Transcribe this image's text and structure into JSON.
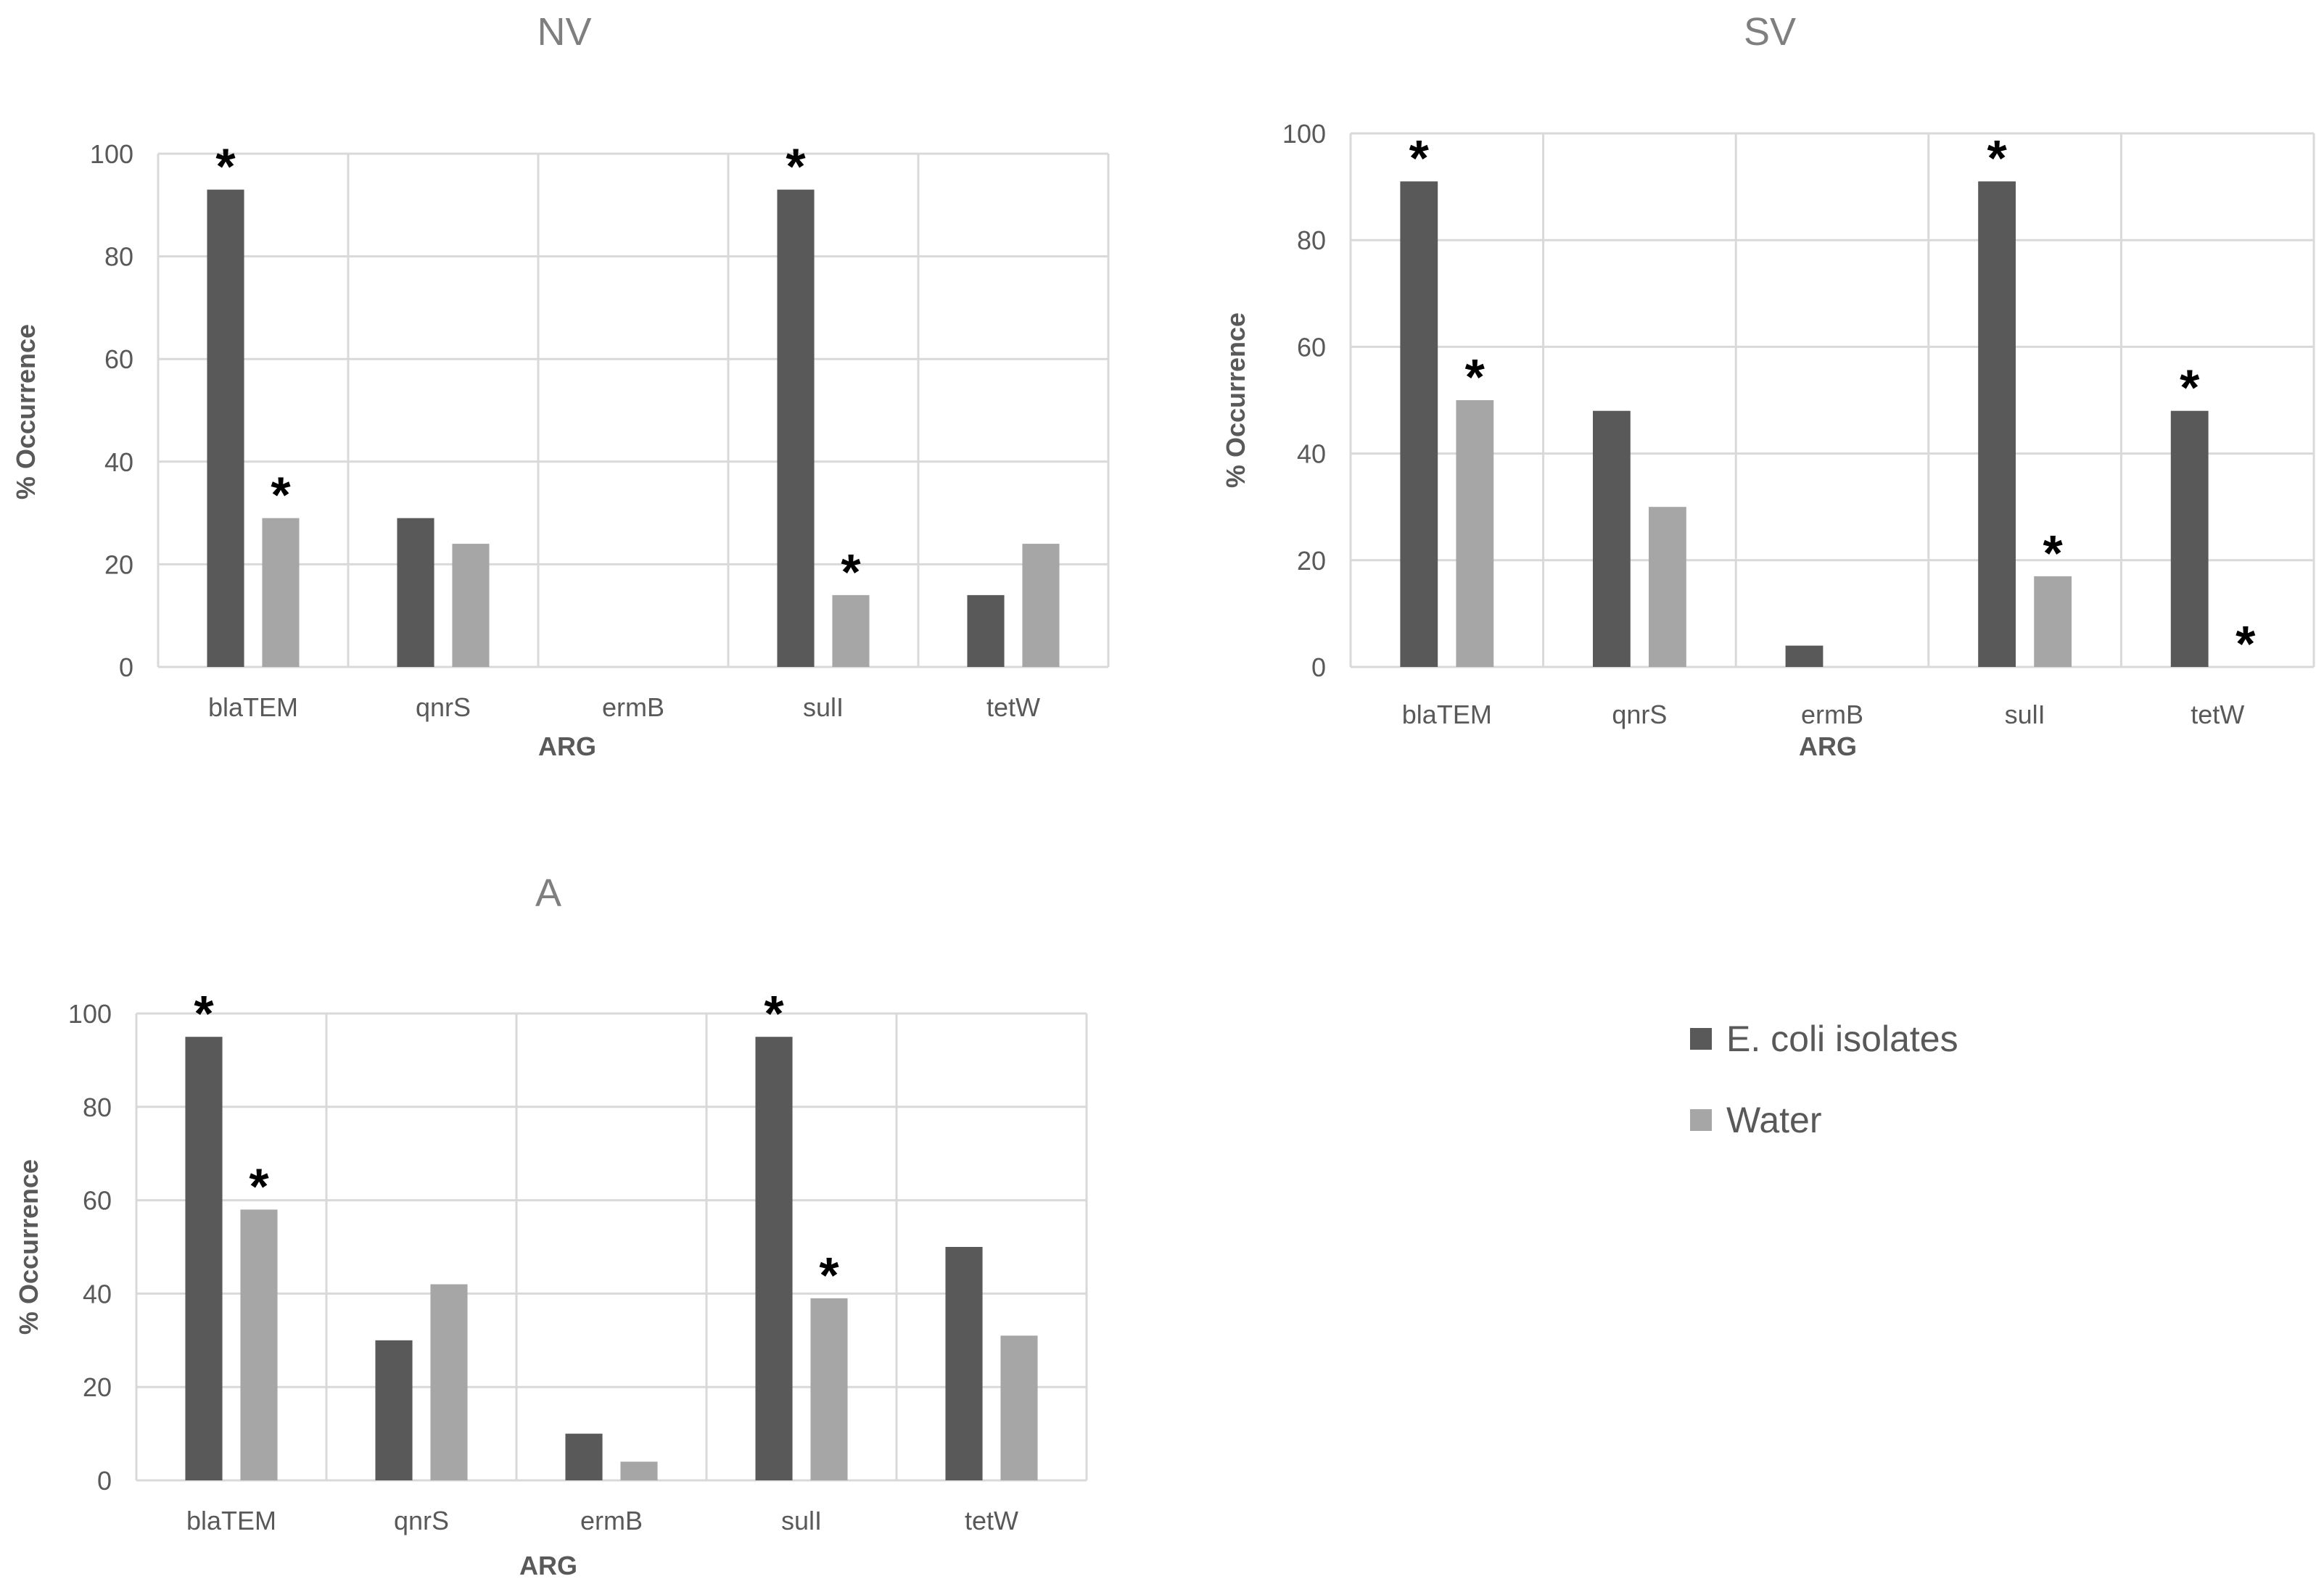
{
  "chart_data": [
    {
      "type": "bar",
      "title": "NV",
      "xlabel": "ARG",
      "ylabel": "% Occurrence",
      "ylim": [
        0,
        100
      ],
      "yticks": [
        0,
        20,
        40,
        60,
        80,
        100
      ],
      "grid": true,
      "categories": [
        "blaTEM",
        "qnrS",
        "ermB",
        "sulI",
        "tetW"
      ],
      "series": [
        {
          "name": "E. coli isolates",
          "values": [
            93,
            29,
            0,
            93,
            14
          ],
          "significant": [
            true,
            false,
            false,
            true,
            false
          ]
        },
        {
          "name": "Water",
          "values": [
            29,
            24,
            0,
            14,
            24
          ],
          "significant": [
            true,
            false,
            false,
            true,
            false
          ]
        }
      ]
    },
    {
      "type": "bar",
      "title": "SV",
      "xlabel": "ARG",
      "ylabel": "% Occurrence",
      "ylim": [
        0,
        100
      ],
      "yticks": [
        0,
        20,
        40,
        60,
        80,
        100
      ],
      "grid": true,
      "categories": [
        "blaTEM",
        "qnrS",
        "ermB",
        "sulI",
        "tetW"
      ],
      "series": [
        {
          "name": "E. coli isolates",
          "values": [
            91,
            48,
            4,
            91,
            48
          ],
          "significant": [
            true,
            false,
            false,
            true,
            true
          ]
        },
        {
          "name": "Water",
          "values": [
            50,
            30,
            0,
            17,
            0
          ],
          "significant": [
            true,
            false,
            false,
            true,
            true
          ]
        }
      ]
    },
    {
      "type": "bar",
      "title": "A",
      "xlabel": "ARG",
      "ylabel": "% Occurrence",
      "ylim": [
        0,
        100
      ],
      "yticks": [
        0,
        20,
        40,
        60,
        80,
        100
      ],
      "grid": true,
      "categories": [
        "blaTEM",
        "qnrS",
        "ermB",
        "sulI",
        "tetW"
      ],
      "series": [
        {
          "name": "E. coli isolates",
          "values": [
            95,
            30,
            10,
            95,
            50
          ],
          "significant": [
            true,
            false,
            false,
            true,
            false
          ]
        },
        {
          "name": "Water",
          "values": [
            58,
            42,
            4,
            39,
            31
          ],
          "significant": [
            true,
            false,
            false,
            true,
            false
          ]
        }
      ]
    }
  ],
  "significance_marker": "*",
  "legend": {
    "items": [
      {
        "label": "E. coli isolates",
        "color": "#595959"
      },
      {
        "label": "Water",
        "color": "#a6a6a6"
      }
    ]
  },
  "colors": {
    "ecoli": "#595959",
    "water": "#a6a6a6",
    "grid": "#d9d9d9"
  }
}
